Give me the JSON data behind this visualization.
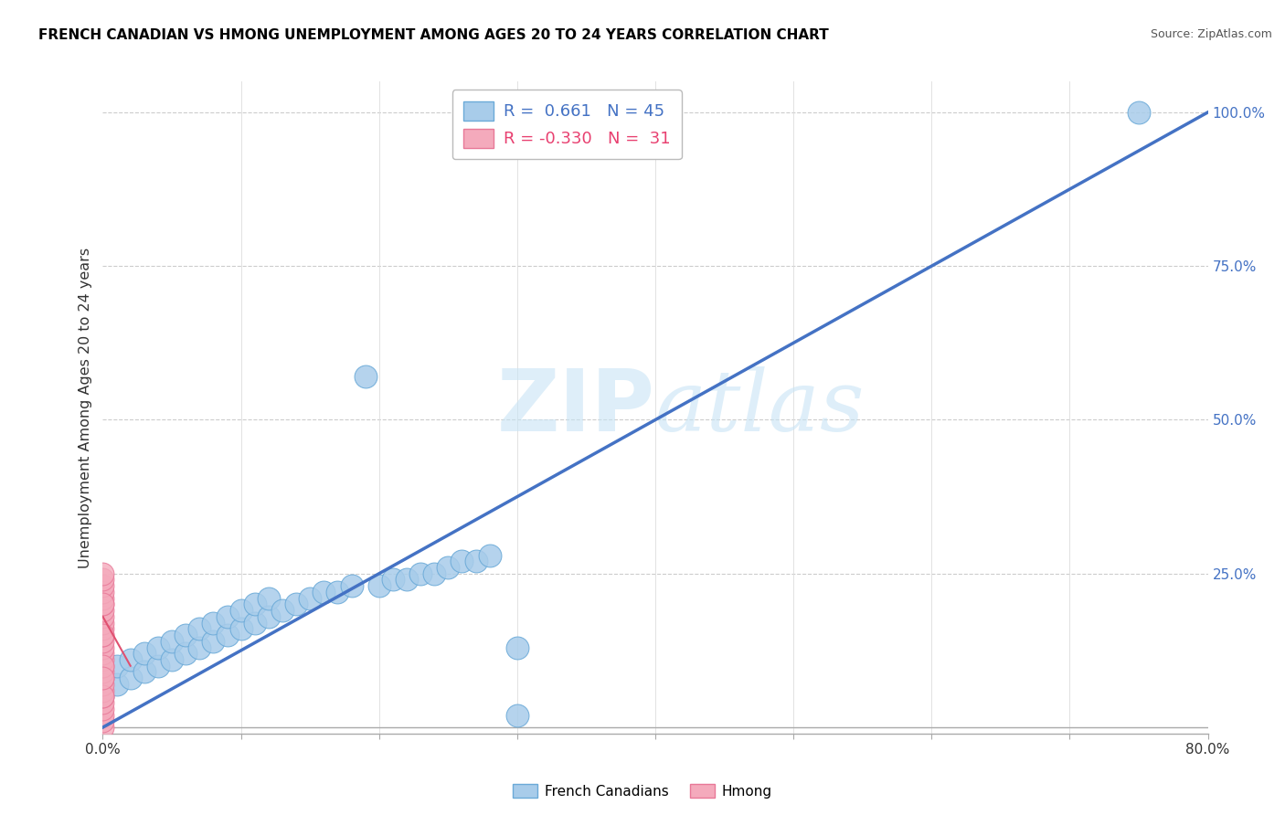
{
  "title": "FRENCH CANADIAN VS HMONG UNEMPLOYMENT AMONG AGES 20 TO 24 YEARS CORRELATION CHART",
  "source": "Source: ZipAtlas.com",
  "ylabel": "Unemployment Among Ages 20 to 24 years",
  "xlim": [
    0.0,
    0.8
  ],
  "ylim": [
    -0.01,
    1.05
  ],
  "french_R": 0.661,
  "french_N": 45,
  "hmong_R": -0.33,
  "hmong_N": 31,
  "french_color": "#A8CCEA",
  "hmong_color": "#F4AABC",
  "french_edge": "#6BAAD8",
  "hmong_edge": "#E87898",
  "trendline_color": "#4472C4",
  "hmong_trendline_color": "#E05070",
  "watermark_zip": "ZIP",
  "watermark_atlas": "atlas",
  "legend_label_french": "French Canadians",
  "legend_label_hmong": "Hmong",
  "french_x": [
    0.0,
    0.0,
    0.01,
    0.01,
    0.02,
    0.02,
    0.03,
    0.03,
    0.04,
    0.04,
    0.05,
    0.05,
    0.06,
    0.06,
    0.07,
    0.07,
    0.08,
    0.08,
    0.09,
    0.09,
    0.1,
    0.1,
    0.11,
    0.11,
    0.12,
    0.12,
    0.13,
    0.14,
    0.15,
    0.16,
    0.17,
    0.18,
    0.19,
    0.2,
    0.21,
    0.22,
    0.23,
    0.24,
    0.25,
    0.26,
    0.27,
    0.28,
    0.3,
    0.75,
    0.3
  ],
  "french_y": [
    0.05,
    0.08,
    0.07,
    0.1,
    0.08,
    0.11,
    0.09,
    0.12,
    0.1,
    0.13,
    0.11,
    0.14,
    0.12,
    0.15,
    0.13,
    0.16,
    0.14,
    0.17,
    0.15,
    0.18,
    0.16,
    0.19,
    0.17,
    0.2,
    0.18,
    0.21,
    0.19,
    0.2,
    0.21,
    0.22,
    0.22,
    0.23,
    0.57,
    0.23,
    0.24,
    0.24,
    0.25,
    0.25,
    0.26,
    0.27,
    0.27,
    0.28,
    0.13,
    1.0,
    0.02
  ],
  "hmong_x": [
    0.0,
    0.0,
    0.0,
    0.0,
    0.0,
    0.0,
    0.0,
    0.0,
    0.0,
    0.0,
    0.0,
    0.0,
    0.0,
    0.0,
    0.0,
    0.0,
    0.0,
    0.0,
    0.0,
    0.0,
    0.0,
    0.0,
    0.0,
    0.0,
    0.0,
    0.0,
    0.0,
    0.0,
    0.0,
    0.0,
    0.0
  ],
  "hmong_y": [
    0.0,
    0.01,
    0.02,
    0.03,
    0.04,
    0.05,
    0.06,
    0.07,
    0.08,
    0.09,
    0.1,
    0.11,
    0.12,
    0.13,
    0.14,
    0.15,
    0.16,
    0.17,
    0.18,
    0.19,
    0.2,
    0.21,
    0.22,
    0.23,
    0.24,
    0.25,
    0.1,
    0.15,
    0.2,
    0.05,
    0.08
  ],
  "french_trendline_x": [
    0.0,
    0.8
  ],
  "french_trendline_y": [
    0.0,
    1.0
  ],
  "hmong_trendline_x": [
    0.0,
    0.02
  ],
  "hmong_trendline_y": [
    0.18,
    0.1
  ],
  "ytick_vals": [
    0.25,
    0.5,
    0.75,
    1.0
  ],
  "ytick_labs": [
    "25.0%",
    "50.0%",
    "75.0%",
    "100.0%"
  ],
  "xtick_vals": [
    0.0,
    0.1,
    0.2,
    0.3,
    0.4,
    0.5,
    0.6,
    0.7,
    0.8
  ],
  "xtick_labs": [
    "0.0%",
    "",
    "",
    "",
    "",
    "",
    "",
    "",
    "80.0%"
  ],
  "hgrid_vals": [
    0.25,
    0.5,
    0.75,
    1.0
  ],
  "vgrid_vals": [
    0.1,
    0.2,
    0.3,
    0.4,
    0.5,
    0.6,
    0.7
  ]
}
